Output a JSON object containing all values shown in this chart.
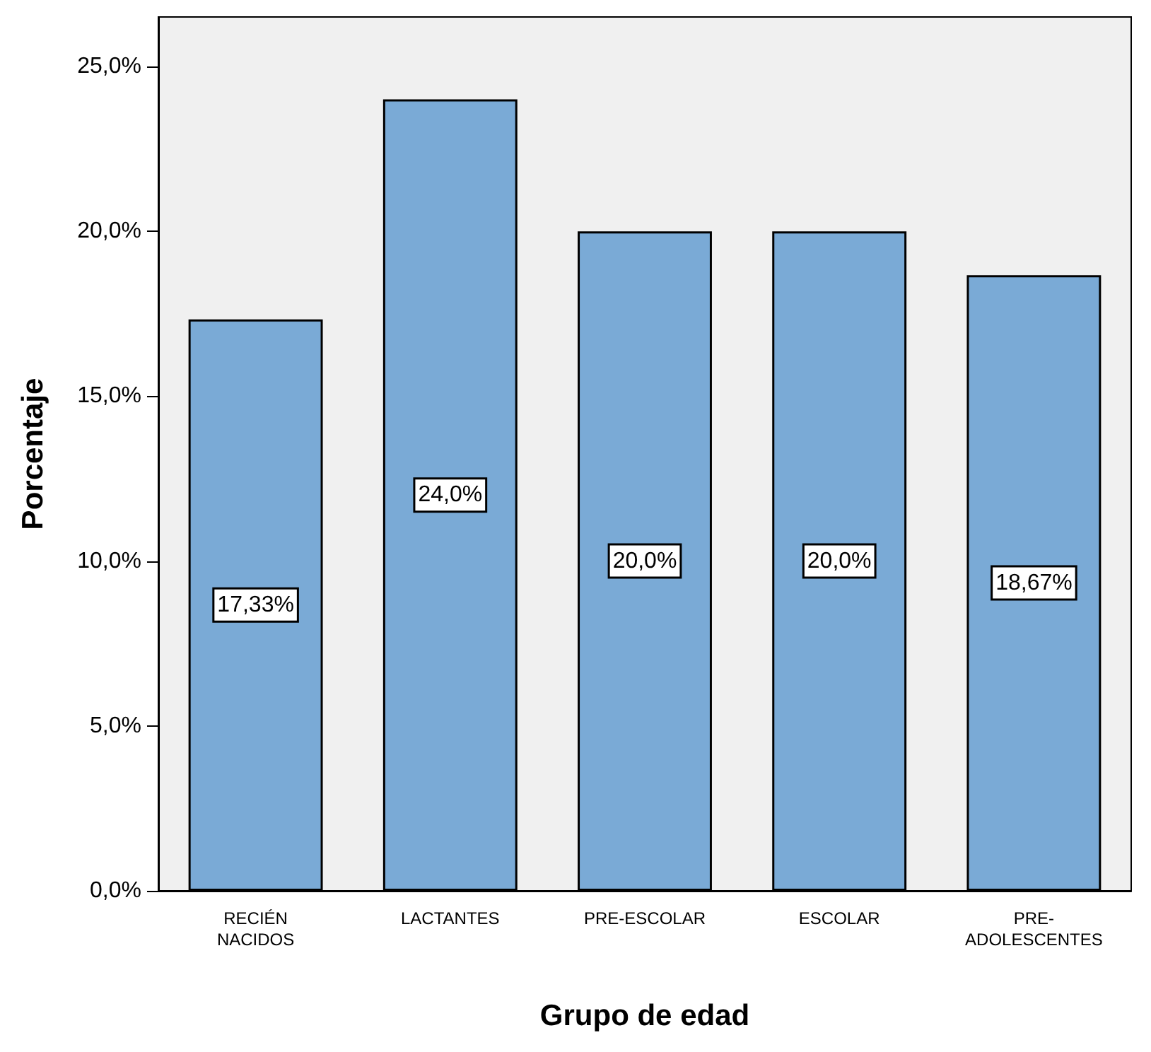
{
  "chart_data": {
    "type": "bar",
    "xlabel": "Grupo de edad",
    "ylabel": "Porcentaje",
    "categories": [
      "RECIÉN\nNACIDOS",
      "LACTANTES",
      "PRE-ESCOLAR",
      "ESCOLAR",
      "PRE-\nADOLESCENTES"
    ],
    "values": [
      17.33,
      24.0,
      20.0,
      20.0,
      18.67
    ],
    "value_labels": [
      "17,33%",
      "24,0%",
      "20,0%",
      "20,0%",
      "18,67%"
    ],
    "color": "#7aaad6",
    "ylim": [
      0,
      26.5
    ],
    "yticks": [
      {
        "value": 0,
        "label": "0,0%"
      },
      {
        "value": 5,
        "label": "5,0%"
      },
      {
        "value": 10,
        "label": "10,0%"
      },
      {
        "value": 15,
        "label": "15,0%"
      },
      {
        "value": 20,
        "label": "20,0%"
      },
      {
        "value": 25,
        "label": "25,0%"
      }
    ],
    "grid": false
  }
}
